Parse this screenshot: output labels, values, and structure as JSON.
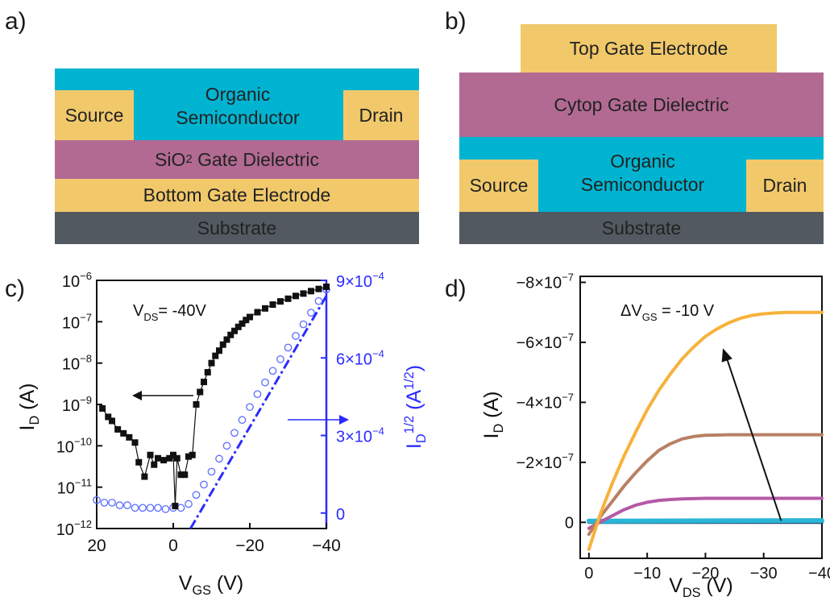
{
  "panel_labels": {
    "a": "a)",
    "b": "b)",
    "c": "c)",
    "d": "d)"
  },
  "device_a": {
    "organic": [
      "Organic",
      "Semiconductor"
    ],
    "source": "Source",
    "drain": "Drain",
    "dielectric_pre": "SiO",
    "dielectric_sub": "2",
    "dielectric_post": " Gate Dielectric",
    "gate": "Bottom Gate Electrode",
    "substrate": "Substrate"
  },
  "device_b": {
    "top_gate": "Top Gate Electrode",
    "dielectric": "Cytop Gate Dielectric",
    "organic": [
      "Organic",
      "Semiconductor"
    ],
    "source": "Source",
    "drain": "Drain",
    "substrate": "Substrate"
  },
  "colors": {
    "electrode": "#f1c96b",
    "semiconductor": "#00b4d1",
    "dielectric": "#b26a92",
    "substrate": "#525960",
    "right_axis": "#2b2bff",
    "curve_orange": "#f7b23b",
    "curve_brown": "#b98064",
    "curve_magenta": "#b45aa6",
    "curve_cyan": "#2ab6d6",
    "curve_navy": "#1f3c6b"
  },
  "chart_data": [
    {
      "type": "scatter",
      "panel": "c",
      "annotation": "V_DS= -40V",
      "xlabel": "V_GS (V)",
      "ylabel_left": "I_D (A)",
      "ylabel_right": "I_D^1/2 (A^1/2)",
      "xlim": [
        20,
        -40
      ],
      "x_ticks": [
        20,
        0,
        -20,
        -40
      ],
      "x_tick_labels": [
        "20",
        "0",
        "−20",
        "−40"
      ],
      "ylim_left_log": [
        1e-12,
        1e-06
      ],
      "y_ticks_left": [
        "10^-12",
        "10^-11",
        "10^-10",
        "10^-9",
        "10^-8",
        "10^-7",
        "10^-6"
      ],
      "ylim_right": [
        -6e-05,
        0.0009
      ],
      "y_ticks_right": [
        "0",
        "3×10^-4",
        "6×10^-4",
        "9×10^-4"
      ],
      "series": [
        {
          "axis": "left",
          "style": "filled-square-black",
          "x": [
            18.5,
            17,
            16,
            14.5,
            13,
            11.5,
            10,
            9,
            7.5,
            6,
            5,
            4,
            2.5,
            1,
            0,
            -0.5,
            -1,
            -2,
            -3,
            -4,
            -5,
            -6,
            -7,
            -8,
            -9,
            -10,
            -11,
            -12,
            -13,
            -14,
            -15,
            -16,
            -17,
            -18,
            -19,
            -20,
            -22,
            -24,
            -26,
            -28,
            -30,
            -32,
            -34,
            -36,
            -38,
            -40
          ],
          "y": [
            8e-10,
            5e-10,
            4e-10,
            2.5e-10,
            2e-10,
            1.6e-10,
            1.2e-10,
            4e-11,
            1.8e-11,
            6e-11,
            3.5e-11,
            5e-11,
            4.5e-11,
            5e-11,
            6e-11,
            3.5e-12,
            5e-11,
            2e-11,
            2e-11,
            5.5e-11,
            6e-11,
            1e-09,
            2e-09,
            3.5e-09,
            6e-09,
            1e-08,
            1.5e-08,
            2e-08,
            2.8e-08,
            3.7e-08,
            4.8e-08,
            6e-08,
            7.5e-08,
            9e-08,
            1.1e-07,
            1.3e-07,
            1.7e-07,
            2.1e-07,
            2.6e-07,
            3.1e-07,
            3.6e-07,
            4.2e-07,
            4.8e-07,
            5.5e-07,
            6.2e-07,
            7e-07
          ]
        },
        {
          "axis": "right",
          "style": "open-circle-blue",
          "x": [
            20,
            18,
            16,
            14,
            12,
            10,
            8,
            6,
            4,
            2,
            0,
            -2,
            -4,
            -6,
            -8,
            -10,
            -12,
            -14,
            -16,
            -18,
            -20,
            -22,
            -24,
            -26,
            -28,
            -30,
            -32,
            -34,
            -36,
            -38,
            -40
          ],
          "y": [
            5e-05,
            4e-05,
            4e-05,
            3e-05,
            3e-05,
            2e-05,
            2e-05,
            2e-05,
            2e-05,
            1.5e-05,
            2e-05,
            2e-05,
            3.5e-05,
            7e-05,
            0.00011,
            0.00016,
            0.00021,
            0.00026,
            0.00031,
            0.00036,
            0.00041,
            0.00046,
            0.000505,
            0.00055,
            0.000595,
            0.00064,
            0.000685,
            0.00073,
            0.000775,
            0.00082,
            0.000865
          ]
        },
        {
          "axis": "right",
          "style": "dash-dot-blue-fit",
          "x": [
            -4.5,
            -40
          ],
          "y": [
            -6e-05,
            0.00084
          ]
        }
      ]
    },
    {
      "type": "line",
      "panel": "d",
      "annotation": "ΔV_GS = -10 V",
      "xlabel": "V_DS (V)",
      "ylabel": "I_D (A)",
      "xlim": [
        1.5,
        -40
      ],
      "x_ticks": [
        0,
        -10,
        -20,
        -30,
        -40
      ],
      "x_tick_labels": [
        "0",
        "−10",
        "−20",
        "−30",
        "−40"
      ],
      "ylim": [
        1.2e-07,
        -8.2e-07
      ],
      "y_ticks": [
        0,
        -2e-07,
        -4e-07,
        -6e-07,
        -8e-07
      ],
      "y_tick_labels": [
        "0",
        "−2×10^-7",
        "−4×10^-7",
        "−6×10^-7",
        "−8×10^-7"
      ],
      "arrow": {
        "from": [
          -33,
          0
        ],
        "to": [
          -23,
          -5.8e-07
        ]
      },
      "series": [
        {
          "color": "#f7b23b",
          "x": [
            0,
            -2,
            -4,
            -6,
            -8,
            -10,
            -12,
            -14,
            -16,
            -18,
            -20,
            -22,
            -24,
            -26,
            -28,
            -30,
            -32,
            -34,
            -36,
            -38,
            -40
          ],
          "y": [
            9e-08,
            -3e-08,
            -1.3e-07,
            -2.2e-07,
            -3e-07,
            -3.75e-07,
            -4.4e-07,
            -4.95e-07,
            -5.45e-07,
            -5.85e-07,
            -6.2e-07,
            -6.45e-07,
            -6.65e-07,
            -6.8e-07,
            -6.9e-07,
            -6.95e-07,
            -6.98e-07,
            -7e-07,
            -7e-07,
            -7e-07,
            -7e-07
          ]
        },
        {
          "color": "#b98064",
          "x": [
            0,
            -2,
            -4,
            -6,
            -8,
            -10,
            -12,
            -14,
            -16,
            -18,
            -20,
            -24,
            -28,
            -32,
            -36,
            -40
          ],
          "y": [
            4e-08,
            -2e-08,
            -7e-08,
            -1.2e-07,
            -1.65e-07,
            -2.05e-07,
            -2.4e-07,
            -2.62e-07,
            -2.78e-07,
            -2.86e-07,
            -2.9e-07,
            -2.92e-07,
            -2.92e-07,
            -2.92e-07,
            -2.92e-07,
            -2.92e-07
          ]
        },
        {
          "color": "#b45aa6",
          "x": [
            0,
            -2,
            -4,
            -6,
            -8,
            -10,
            -12,
            -14,
            -16,
            -20,
            -25,
            -30,
            -35,
            -40
          ],
          "y": [
            2e-08,
            -2e-09,
            -2.2e-08,
            -4.2e-08,
            -5.7e-08,
            -6.7e-08,
            -7.3e-08,
            -7.6e-08,
            -7.8e-08,
            -8e-08,
            -8e-08,
            -8e-08,
            -8e-08,
            -8e-08
          ]
        },
        {
          "color": "#2ab6d6",
          "x": [
            0,
            -40
          ],
          "y": [
            -4e-09,
            -6e-09
          ]
        },
        {
          "color": "#1f3c6b",
          "x": [
            0,
            -40
          ],
          "y": [
            0,
            0
          ]
        }
      ]
    }
  ]
}
